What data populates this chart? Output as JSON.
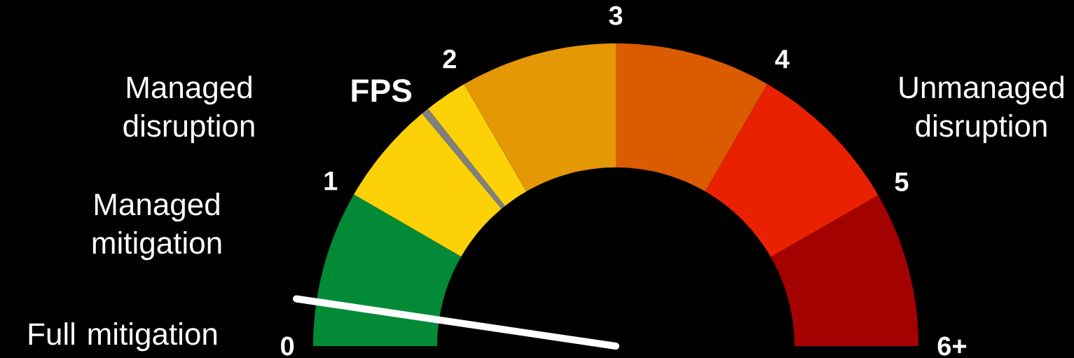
{
  "chart_data": {
    "type": "donut",
    "categories": [
      "0",
      "1",
      "FPS",
      null,
      "2",
      "3",
      "4",
      "5"
    ],
    "values": [
      16.7,
      11.2,
      0.8,
      4.6,
      16.7,
      16.7,
      16.7,
      16.6
    ],
    "colors": [
      "#038a37",
      "#fdd108",
      "#808080",
      "#fdd108",
      "#e49805",
      "#da5b00",
      "#ea2100",
      "#a40200"
    ],
    "needle": "0",
    "annotations": [
      "6+",
      "Managed disruption",
      "Unmanaged disruption",
      "Managed mitigation",
      "Full mitigation"
    ]
  }
}
